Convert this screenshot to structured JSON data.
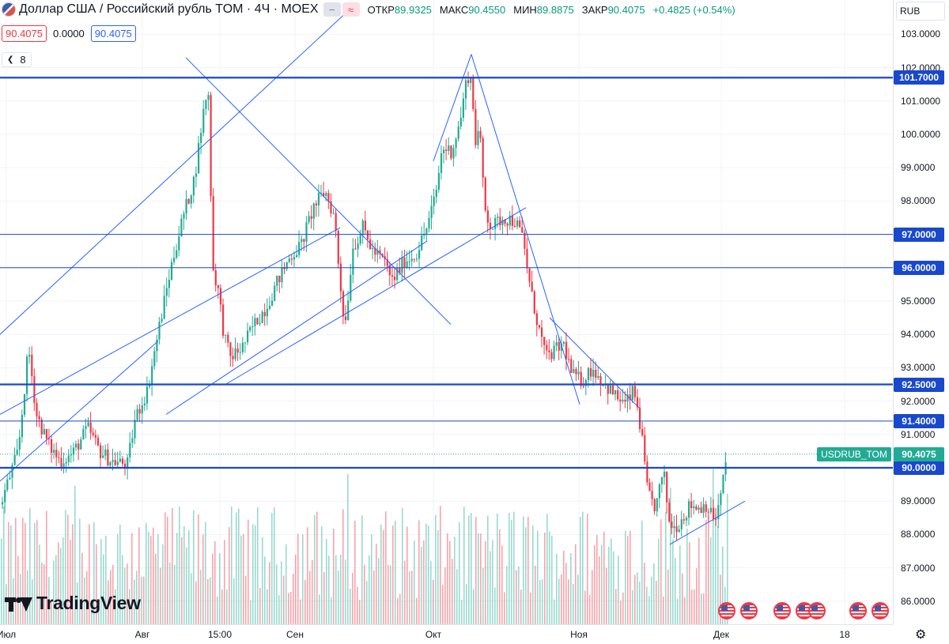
{
  "header": {
    "title": "Доллар США / Российский рубль TOM · 4Ч · MOEX",
    "flag_icon": "us-ru-flag-icon",
    "buttons": [
      {
        "name": "minus-icon",
        "glyph": "−"
      },
      {
        "name": "approx-icon",
        "glyph": "≈"
      }
    ],
    "ohlc": [
      {
        "label": "ОТКР",
        "value": "89.9325"
      },
      {
        "label": "МАКС",
        "value": "90.4550"
      },
      {
        "label": "МИН",
        "value": "89.8875"
      },
      {
        "label": "ЗАКР",
        "value": "90.4075"
      },
      {
        "label": "",
        "value": "+0.4825 (+0.54%)"
      }
    ]
  },
  "legend_row": {
    "bid": "90.4075",
    "spread": "0.0000",
    "ask": "90.4075"
  },
  "indicators": {
    "count": "8"
  },
  "currency": "RUB",
  "branding": {
    "logo_text": "TradingView"
  },
  "colors": {
    "up": "#22ab94",
    "down": "#f23645",
    "level": "#1848cc",
    "trend": "#2962ff"
  },
  "event_icons": "us-flag-economic-event-icon",
  "chart_data": {
    "type": "candlestick",
    "symbol": "USDRUB_TOM",
    "interval": "4Ч",
    "last_price": 90.4075,
    "y_range": [
      85.5,
      103.4
    ],
    "y_ticks": [
      "86.0000",
      "87.0000",
      "88.0000",
      "89.0000",
      "90.0000",
      "91.0000",
      "92.0000",
      "93.0000",
      "94.0000",
      "95.0000",
      "96.0000",
      "97.0000",
      "98.0000",
      "99.0000",
      "100.0000",
      "101.0000",
      "102.0000",
      "103.0000"
    ],
    "x_ticks": [
      "Июл",
      "Авг",
      "15:00",
      "Сен",
      "Окт",
      "Ноя",
      "Дек",
      "18"
    ],
    "horizontal_levels": [
      {
        "value": 101.7,
        "label": "101.7000",
        "style": "thick"
      },
      {
        "value": 97.0,
        "label": "97.0000",
        "style": "thin"
      },
      {
        "value": 96.0,
        "label": "96.0000",
        "style": "thin"
      },
      {
        "value": 92.5,
        "label": "92.5000",
        "style": "thick"
      },
      {
        "value": 91.4,
        "label": "91.4000",
        "style": "thin"
      },
      {
        "value": 90.0,
        "label": "90.0000",
        "style": "thick"
      }
    ],
    "price_path": [
      [
        0,
        88.9
      ],
      [
        12,
        89.8
      ],
      [
        22,
        90.5
      ],
      [
        35,
        93.6
      ],
      [
        45,
        91.6
      ],
      [
        60,
        90.7
      ],
      [
        75,
        90.2
      ],
      [
        90,
        90.4
      ],
      [
        110,
        91.2
      ],
      [
        125,
        90.5
      ],
      [
        140,
        90.2
      ],
      [
        160,
        90.1
      ],
      [
        170,
        91.5
      ],
      [
        185,
        92.3
      ],
      [
        200,
        94.2
      ],
      [
        215,
        96.0
      ],
      [
        230,
        97.5
      ],
      [
        245,
        98.7
      ],
      [
        255,
        100.5
      ],
      [
        262,
        101.5
      ],
      [
        268,
        96.0
      ],
      [
        275,
        95.3
      ],
      [
        282,
        94.0
      ],
      [
        290,
        93.3
      ],
      [
        305,
        93.6
      ],
      [
        320,
        94.3
      ],
      [
        335,
        94.8
      ],
      [
        350,
        95.6
      ],
      [
        365,
        96.3
      ],
      [
        380,
        96.7
      ],
      [
        395,
        97.8
      ],
      [
        410,
        98.3
      ],
      [
        422,
        97.5
      ],
      [
        428,
        95.8
      ],
      [
        435,
        94.2
      ],
      [
        445,
        96.6
      ],
      [
        458,
        97.2
      ],
      [
        470,
        96.5
      ],
      [
        485,
        96.2
      ],
      [
        495,
        95.6
      ],
      [
        510,
        96.2
      ],
      [
        525,
        96.4
      ],
      [
        540,
        97.3
      ],
      [
        550,
        98.2
      ],
      [
        558,
        99.6
      ],
      [
        570,
        99.5
      ],
      [
        580,
        100.3
      ],
      [
        590,
        101.8
      ],
      [
        595,
        101.6
      ],
      [
        600,
        99.8
      ],
      [
        605,
        100.2
      ],
      [
        612,
        97.8
      ],
      [
        620,
        97.2
      ],
      [
        635,
        97.5
      ],
      [
        650,
        97.4
      ],
      [
        660,
        96.9
      ],
      [
        670,
        95.3
      ],
      [
        680,
        94.2
      ],
      [
        690,
        93.3
      ],
      [
        700,
        93.5
      ],
      [
        712,
        93.7
      ],
      [
        722,
        92.8
      ],
      [
        735,
        92.6
      ],
      [
        748,
        93.0
      ],
      [
        760,
        92.6
      ],
      [
        775,
        92.2
      ],
      [
        790,
        91.9
      ],
      [
        800,
        92.3
      ],
      [
        806,
        91.7
      ],
      [
        812,
        90.6
      ],
      [
        818,
        89.2
      ],
      [
        828,
        88.8
      ],
      [
        838,
        89.9
      ],
      [
        845,
        88.4
      ],
      [
        852,
        88.2
      ],
      [
        862,
        88.5
      ],
      [
        872,
        88.9
      ],
      [
        882,
        88.8
      ],
      [
        892,
        88.9
      ],
      [
        898,
        88.6
      ],
      [
        905,
        88.5
      ],
      [
        912,
        89.4
      ],
      [
        918,
        90.4
      ]
    ],
    "trendlines": [
      {
        "from": [
          0,
          94.0
        ],
        "to": [
          440,
          103.7
        ]
      },
      {
        "from": [
          235,
          102.3
        ],
        "to": [
          570,
          94.3
        ]
      },
      {
        "from": [
          0,
          91.6
        ],
        "to": [
          430,
          97.2
        ]
      },
      {
        "from": [
          210,
          91.6
        ],
        "to": [
          540,
          96.8
        ]
      },
      {
        "from": [
          0,
          89.6
        ],
        "to": [
          200,
          93.8
        ]
      },
      {
        "from": [
          285,
          92.5
        ],
        "to": [
          665,
          97.8
        ]
      },
      {
        "from": [
          548,
          99.2
        ],
        "to": [
          596,
          102.4
        ]
      },
      {
        "from": [
          596,
          102.4
        ],
        "to": [
          733,
          91.9
        ]
      },
      {
        "from": [
          695,
          94.5
        ],
        "to": [
          808,
          91.8
        ]
      },
      {
        "from": [
          847,
          87.7
        ],
        "to": [
          942,
          89.0
        ]
      }
    ]
  }
}
